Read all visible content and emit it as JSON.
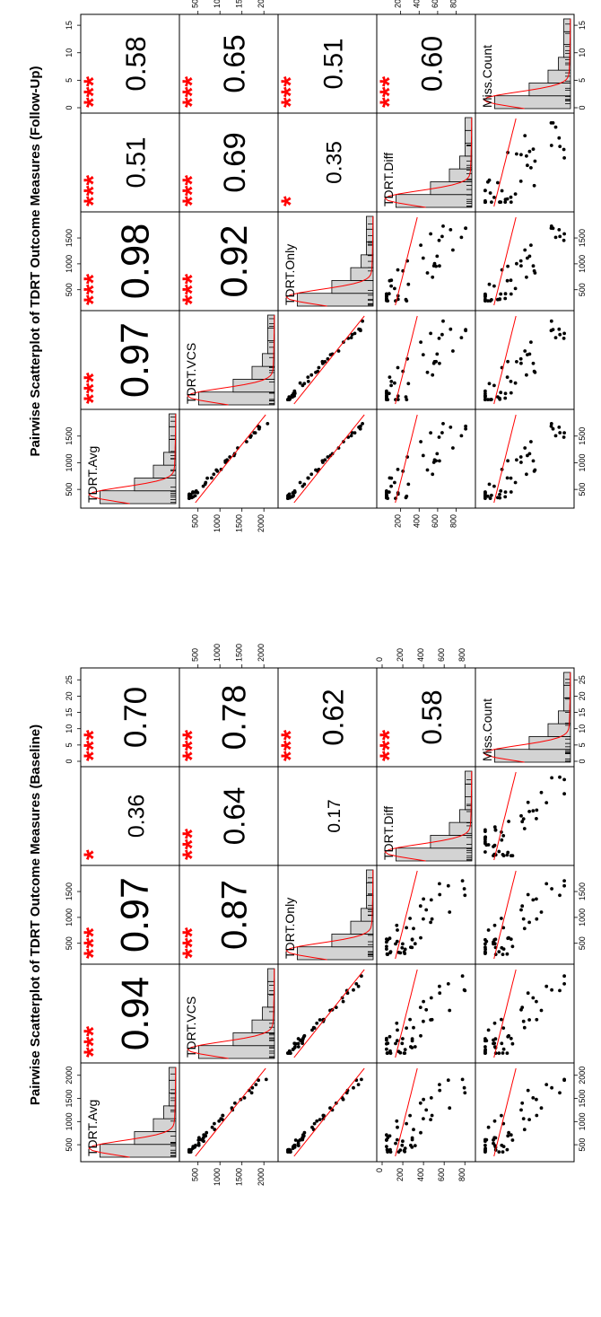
{
  "chart_data": [
    {
      "type": "scatter",
      "title": "Pairwise Scatterplot of TDRT Outcome Measures (Baseline)",
      "variables": [
        "TDRT.Avg",
        "TDRT.VCS",
        "TDRT.Only",
        "TDRT.Diff",
        "Miss.Count"
      ],
      "ranges": [
        [
          250,
          2150
        ],
        [
          200,
          2200
        ],
        [
          200,
          1900
        ],
        [
          0,
          850
        ],
        [
          0,
          27
        ]
      ],
      "axis_ticks": [
        [
          500,
          1000,
          1500,
          2000
        ],
        [
          500,
          1000,
          1500,
          2000
        ],
        [
          500,
          1000,
          1500
        ],
        [
          0,
          200,
          400,
          600,
          800
        ],
        [
          0,
          5,
          10,
          15,
          20,
          25
        ]
      ],
      "correlations": [
        {
          "vars": [
            "TDRT.Avg",
            "TDRT.VCS"
          ],
          "r": "0.94",
          "stars": "***"
        },
        {
          "vars": [
            "TDRT.Avg",
            "TDRT.Only"
          ],
          "r": "0.97",
          "stars": "***"
        },
        {
          "vars": [
            "TDRT.Avg",
            "TDRT.Diff"
          ],
          "r": "0.36",
          "stars": "*"
        },
        {
          "vars": [
            "TDRT.Avg",
            "Miss.Count"
          ],
          "r": "0.70",
          "stars": "***"
        },
        {
          "vars": [
            "TDRT.VCS",
            "TDRT.Only"
          ],
          "r": "0.87",
          "stars": "***"
        },
        {
          "vars": [
            "TDRT.VCS",
            "TDRT.Diff"
          ],
          "r": "0.64",
          "stars": "***"
        },
        {
          "vars": [
            "TDRT.VCS",
            "Miss.Count"
          ],
          "r": "0.78",
          "stars": "***"
        },
        {
          "vars": [
            "TDRT.Only",
            "TDRT.Diff"
          ],
          "r": "0.17",
          "stars": ""
        },
        {
          "vars": [
            "TDRT.Only",
            "Miss.Count"
          ],
          "r": "0.62",
          "stars": "***"
        },
        {
          "vars": [
            "TDRT.Diff",
            "Miss.Count"
          ],
          "r": "0.58",
          "stars": "***"
        }
      ]
    },
    {
      "type": "scatter",
      "title": "Pairwise Scatterplot of TDRT Outcome Measures (Follow-Up)",
      "variables": [
        "TDRT.Avg",
        "TDRT.VCS",
        "TDRT.Only",
        "TDRT.Diff",
        "Miss.Count"
      ],
      "ranges": [
        [
          250,
          1900
        ],
        [
          200,
          2200
        ],
        [
          200,
          1900
        ],
        [
          0,
          950
        ],
        [
          0,
          16
        ]
      ],
      "axis_ticks": [
        [
          500,
          1000,
          1500
        ],
        [
          500,
          1000,
          1500,
          2000
        ],
        [
          500,
          1000,
          1500
        ],
        [
          200,
          400,
          600,
          800
        ],
        [
          0,
          5,
          10,
          15
        ]
      ],
      "correlations": [
        {
          "vars": [
            "TDRT.Avg",
            "TDRT.VCS"
          ],
          "r": "0.97",
          "stars": "***"
        },
        {
          "vars": [
            "TDRT.Avg",
            "TDRT.Only"
          ],
          "r": "0.98",
          "stars": "***"
        },
        {
          "vars": [
            "TDRT.Avg",
            "TDRT.Diff"
          ],
          "r": "0.51",
          "stars": "***"
        },
        {
          "vars": [
            "TDRT.Avg",
            "Miss.Count"
          ],
          "r": "0.58",
          "stars": "***"
        },
        {
          "vars": [
            "TDRT.VCS",
            "TDRT.Only"
          ],
          "r": "0.92",
          "stars": "***"
        },
        {
          "vars": [
            "TDRT.VCS",
            "TDRT.Diff"
          ],
          "r": "0.69",
          "stars": "***"
        },
        {
          "vars": [
            "TDRT.VCS",
            "Miss.Count"
          ],
          "r": "0.65",
          "stars": "***"
        },
        {
          "vars": [
            "TDRT.Only",
            "TDRT.Diff"
          ],
          "r": "0.35",
          "stars": "*"
        },
        {
          "vars": [
            "TDRT.Only",
            "Miss.Count"
          ],
          "r": "0.51",
          "stars": "***"
        },
        {
          "vars": [
            "TDRT.Diff",
            "Miss.Count"
          ],
          "r": "0.60",
          "stars": "***"
        }
      ]
    }
  ]
}
